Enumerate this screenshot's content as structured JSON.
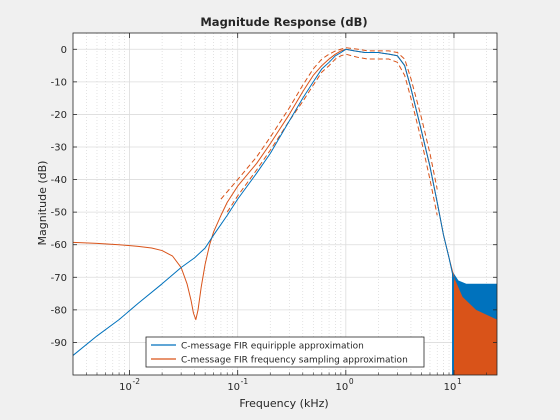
{
  "chart_data": {
    "type": "line",
    "title": "Magnitude Response (dB)",
    "xlabel": "Frequency (kHz)",
    "ylabel": "Magnitude (dB)",
    "xscale": "log",
    "xlim": [
      0.003,
      25
    ],
    "ylim": [
      -100,
      5
    ],
    "grid": true,
    "minor_grid": true,
    "legend_placement": "bottom-center",
    "yticks": [
      0,
      -10,
      -20,
      -30,
      -40,
      -50,
      -60,
      -70,
      -80,
      -90
    ],
    "ytick_labels": [
      "0",
      "-10",
      "-20",
      "-30",
      "-40",
      "-50",
      "-60",
      "-70",
      "-80",
      "-90"
    ],
    "xticks": [
      {
        "value": 0.01,
        "base": "10",
        "exp": "-2"
      },
      {
        "value": 0.1,
        "base": "10",
        "exp": "-1"
      },
      {
        "value": 1,
        "base": "10",
        "exp": "0"
      },
      {
        "value": 10,
        "base": "10",
        "exp": "1"
      }
    ],
    "series": [
      {
        "name": "C-message FIR equiripple approximation",
        "color": "#0072bd",
        "style": "solid",
        "x": [
          0.003,
          0.005,
          0.008,
          0.012,
          0.02,
          0.03,
          0.04,
          0.05,
          0.06,
          0.08,
          0.1,
          0.15,
          0.2,
          0.3,
          0.4,
          0.5,
          0.6,
          0.7,
          0.8,
          0.9,
          1.0,
          1.2,
          1.5,
          2.0,
          2.5,
          3.0,
          3.5,
          4.0,
          5.0,
          6.0,
          7.0,
          8.0,
          9.0,
          10.0
        ],
        "y": [
          -94,
          -88,
          -83,
          -78,
          -72,
          -67,
          -64,
          -61,
          -57,
          -51,
          -46,
          -38,
          -32,
          -22,
          -15,
          -10,
          -6,
          -4,
          -2,
          -1,
          0,
          -0.5,
          -1,
          -1,
          -1.5,
          -2,
          -5,
          -12,
          -25,
          -36,
          -47,
          -57,
          -64,
          -71
        ]
      },
      {
        "name": "C-message FIR frequency sampling approximation",
        "color": "#d95319",
        "style": "solid",
        "x": [
          0.003,
          0.005,
          0.008,
          0.012,
          0.016,
          0.02,
          0.025,
          0.03,
          0.034,
          0.037,
          0.039,
          0.041,
          0.043,
          0.046,
          0.05,
          0.055,
          0.06,
          0.07,
          0.08,
          0.1,
          0.15,
          0.2,
          0.3,
          0.4,
          0.5,
          0.6,
          0.7,
          0.8,
          0.9,
          1.0,
          1.2,
          1.5,
          2.0,
          2.5,
          3.0,
          3.5,
          4.0,
          5.0,
          6.0,
          7.0,
          8.0,
          9.0,
          10.0
        ],
        "y": [
          -59.3,
          -59.6,
          -60,
          -60.5,
          -61,
          -61.8,
          -63.5,
          -67,
          -72,
          -77,
          -81,
          -83,
          -80,
          -73,
          -66,
          -60,
          -56,
          -51,
          -47,
          -42,
          -35,
          -29,
          -20,
          -13,
          -8,
          -5,
          -3,
          -1.5,
          -0.5,
          0,
          -0.5,
          -1,
          -1,
          -1.5,
          -2,
          -5,
          -12,
          -25,
          -36,
          -47,
          -57,
          -64,
          -70
        ]
      },
      {
        "name": "",
        "color": "#d95319",
        "style": "dashed",
        "x": [
          0.07,
          0.1,
          0.15,
          0.2,
          0.3,
          0.4,
          0.5,
          0.6,
          0.7,
          0.8,
          0.9,
          1.0,
          1.3,
          1.6,
          2.0,
          2.5,
          3.0,
          3.5,
          4.0,
          5.0,
          6.0,
          7.0
        ],
        "y": [
          -46,
          -40,
          -33,
          -27,
          -18,
          -11,
          -6,
          -3,
          -1.5,
          -0.5,
          0,
          0.5,
          0,
          -0.5,
          -0.5,
          -0.5,
          -1,
          -3,
          -9,
          -21,
          -32,
          -43
        ]
      },
      {
        "name": "",
        "color": "#d95319",
        "style": "dashed",
        "x": [
          0.08,
          0.1,
          0.15,
          0.2,
          0.3,
          0.4,
          0.5,
          0.6,
          0.7,
          0.8,
          0.9,
          1.0,
          1.3,
          1.6,
          2.0,
          2.5,
          3.0,
          3.5,
          4.0,
          5.0,
          6.0,
          7.0
        ],
        "y": [
          -50,
          -45,
          -37,
          -31,
          -22,
          -16,
          -11,
          -7,
          -5,
          -3,
          -2,
          -1.5,
          -2.5,
          -3,
          -3,
          -3,
          -4,
          -8,
          -15,
          -28,
          -40,
          -51
        ]
      }
    ],
    "tail_band": {
      "blue": {
        "color": "#0072bd",
        "top": [
          [
            9.6,
            -68
          ],
          [
            11,
            -71
          ],
          [
            13,
            -72
          ],
          [
            25,
            -72
          ]
        ],
        "bottom": -100
      },
      "orange": {
        "color": "#d95319",
        "top": [
          [
            10.0,
            -70
          ],
          [
            12,
            -76
          ],
          [
            16,
            -80
          ],
          [
            25,
            -83
          ]
        ],
        "bottom": -100
      }
    }
  }
}
